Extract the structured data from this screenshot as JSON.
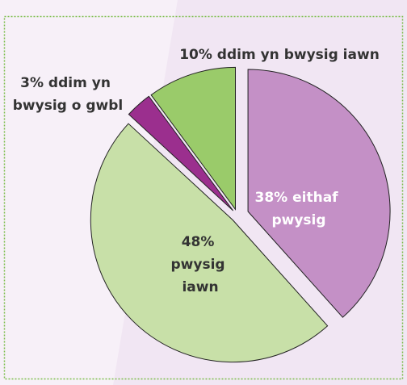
{
  "chart_data": {
    "type": "pie",
    "values": [
      38,
      48,
      3,
      10
    ],
    "value_labels": [
      "38% eithaf pwysig",
      "48% pwysig iawn",
      "3% ddim yn bwysig o gwbl",
      "10% ddim yn bwysig iawn"
    ],
    "colors": [
      "#c490c6",
      "#c8e0a8",
      "#9b2f8e",
      "#9acb6a"
    ],
    "label_colors": [
      "#ffffff",
      "#333333",
      "#333333",
      "#333333"
    ]
  }
}
